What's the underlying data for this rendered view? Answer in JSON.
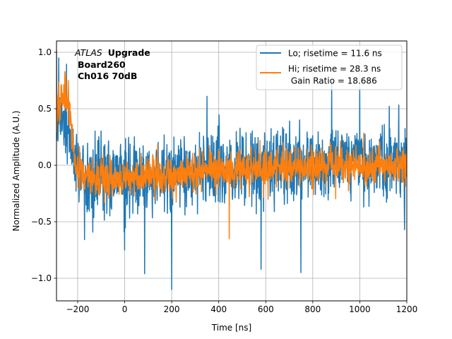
{
  "chart_data": {
    "type": "line",
    "title": "",
    "xlabel": "Time [ns]",
    "ylabel": "Normalized Amplitude (A.U.)",
    "xlim": [
      -290,
      1200
    ],
    "ylim": [
      -1.2,
      1.1
    ],
    "xticks": [
      -200,
      0,
      200,
      400,
      600,
      800,
      1000,
      1200
    ],
    "xtick_labels": [
      "−200",
      "0",
      "200",
      "400",
      "600",
      "800",
      "1000",
      "1200"
    ],
    "yticks": [
      -1.0,
      -0.5,
      0.0,
      0.5,
      1.0
    ],
    "ytick_labels": [
      "−1.0",
      "−0.5",
      "0.0",
      "0.5",
      "1.0"
    ],
    "grid": true,
    "annotation": {
      "italic": "ATLAS",
      "bold": "Upgrade",
      "line2": "Board260",
      "line3": "Ch016 70dB"
    },
    "legend": {
      "position": "top-right",
      "entries": [
        {
          "label": "Lo; risetime = 11.6 ns",
          "color": "#1f77b4"
        },
        {
          "label": "Hi; risetime = 28.3 ns",
          "color": "#ff7f0e"
        }
      ],
      "extra_line": " Gain Ratio = 18.686"
    },
    "series": [
      {
        "name": "Lo",
        "color": "#1f77b4",
        "x_range": [
          -290,
          1200
        ],
        "n_points": 1400,
        "envelope_t": [
          -290,
          -270,
          -240,
          -200,
          -150,
          -50,
          100,
          300,
          600,
          900,
          1200
        ],
        "envelope_mean": [
          0.35,
          0.45,
          0.3,
          -0.02,
          -0.08,
          -0.12,
          -0.12,
          -0.05,
          -0.02,
          0.02,
          0.02
        ],
        "noise_amplitude": 0.26,
        "extremes": [
          {
            "x": -290,
            "y": 1.02
          },
          {
            "x": -280,
            "y": 0.95
          },
          {
            "x": 200,
            "y": -1.1
          },
          {
            "x": 85,
            "y": -0.96
          },
          {
            "x": 750,
            "y": -0.95
          },
          {
            "x": 580,
            "y": -0.92
          },
          {
            "x": 1000,
            "y": 0.69
          },
          {
            "x": 880,
            "y": 0.72
          },
          {
            "x": 350,
            "y": 0.61
          },
          {
            "x": 0,
            "y": -0.75
          },
          {
            "x": 1190,
            "y": -0.57
          }
        ]
      },
      {
        "name": "Hi",
        "color": "#ff7f0e",
        "x_range": [
          -290,
          1200
        ],
        "n_points": 1400,
        "envelope_t": [
          -290,
          -260,
          -235,
          -210,
          -150,
          0,
          200,
          500,
          800,
          1200
        ],
        "envelope_mean": [
          0.45,
          0.62,
          0.5,
          -0.02,
          -0.1,
          -0.12,
          -0.08,
          -0.03,
          0.0,
          0.0
        ],
        "noise_amplitude": 0.13,
        "extremes": [
          {
            "x": -255,
            "y": 0.82
          },
          {
            "x": -250,
            "y": 0.78
          },
          {
            "x": -240,
            "y": 0.75
          },
          {
            "x": 445,
            "y": -0.65
          }
        ]
      }
    ]
  }
}
